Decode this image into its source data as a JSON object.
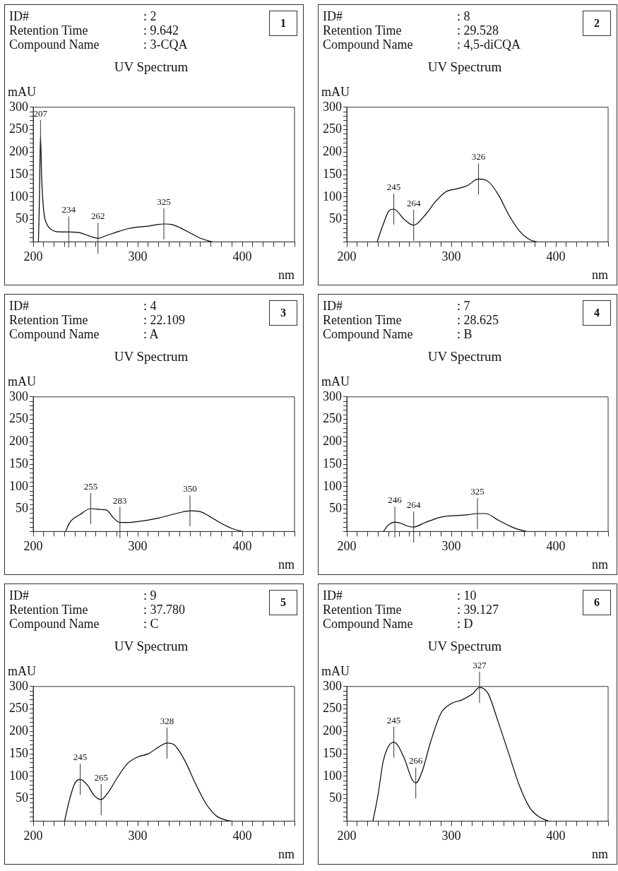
{
  "chart_data": [
    {
      "type": "line",
      "title": "UV Spectrum",
      "ylabel": "mAU",
      "xlabel": "nm",
      "marker": "none",
      "xlim": [
        200,
        450
      ],
      "ylim": [
        0,
        300
      ],
      "xticks": [
        200,
        {
          "value": 210,
          "label": null
        },
        {
          "value": 220,
          "label": null
        },
        {
          "value": 230,
          "label": null
        },
        {
          "value": 240,
          "label": null
        },
        {
          "value": 250,
          "label": null
        },
        {
          "value": 260,
          "label": null
        },
        {
          "value": 270,
          "label": null
        },
        {
          "value": 280,
          "label": null
        },
        {
          "value": 290,
          "label": null
        },
        300,
        {
          "value": 310,
          "label": null
        },
        {
          "value": 320,
          "label": null
        },
        {
          "value": 330,
          "label": null
        },
        {
          "value": 340,
          "label": null
        },
        {
          "value": 350,
          "label": null
        },
        {
          "value": 360,
          "label": null
        },
        {
          "value": 370,
          "label": null
        },
        {
          "value": 380,
          "label": null
        },
        {
          "value": 390,
          "label": null
        },
        400,
        {
          "value": 410,
          "label": null
        },
        {
          "value": 420,
          "label": null
        },
        {
          "value": 430,
          "label": null
        },
        {
          "value": 440,
          "label": null
        },
        {
          "value": 450,
          "label": null
        }
      ],
      "yticks": [
        {
          "value": 0,
          "label": null
        },
        {
          "value": 10,
          "label": null
        },
        {
          "value": 20,
          "label": null
        },
        {
          "value": 30,
          "label": null
        },
        {
          "value": 40,
          "label": null
        },
        50,
        {
          "value": 60,
          "label": null
        },
        {
          "value": 70,
          "label": null
        },
        {
          "value": 80,
          "label": null
        },
        {
          "value": 90,
          "label": null
        },
        100,
        {
          "value": 110,
          "label": null
        },
        {
          "value": 120,
          "label": null
        },
        {
          "value": 130,
          "label": null
        },
        {
          "value": 140,
          "label": null
        },
        150,
        {
          "value": 160,
          "label": null
        },
        {
          "value": 170,
          "label": null
        },
        {
          "value": 180,
          "label": null
        },
        {
          "value": 190,
          "label": null
        },
        200,
        {
          "value": 210,
          "label": null
        },
        {
          "value": 220,
          "label": null
        },
        {
          "value": 230,
          "label": null
        },
        {
          "value": 240,
          "label": null
        },
        250,
        {
          "value": 260,
          "label": null
        },
        {
          "value": 270,
          "label": null
        },
        {
          "value": 280,
          "label": null
        },
        {
          "value": 290,
          "label": null
        },
        300
      ],
      "x": [
        205,
        206,
        207,
        208,
        210,
        213,
        217,
        222,
        234,
        245,
        255,
        262,
        270,
        280,
        290,
        300,
        310,
        320,
        325,
        332,
        340,
        350,
        360,
        368,
        372
      ],
      "series": [
        {
          "color": "#000000",
          "values": [
            0,
            100,
            237,
            150,
            70,
            40,
            28,
            23,
            22,
            20,
            12,
            8,
            14,
            22,
            29,
            33,
            35,
            39,
            40,
            39,
            32,
            20,
            8,
            2,
            0
          ]
        }
      ],
      "annotations": [
        "ID#",
        ": 2",
        "Retention Time",
        ": 9.642",
        "Compound Name",
        ": 3-CQA",
        "1",
        {
          "text": "207",
          "x": 207,
          "y": 237
        },
        {
          "text": "234",
          "x": 234,
          "y": 22
        },
        {
          "text": "262",
          "x": 262,
          "y": 8
        },
        {
          "text": "325",
          "x": 325,
          "y": 40
        }
      ]
    },
    {
      "type": "line",
      "title": "UV Spectrum",
      "ylabel": "mAU",
      "xlabel": "nm",
      "marker": "none",
      "xlim": [
        200,
        450
      ],
      "ylim": [
        0,
        300
      ],
      "xticks": [
        200,
        {
          "value": 210,
          "label": null
        },
        {
          "value": 220,
          "label": null
        },
        {
          "value": 230,
          "label": null
        },
        {
          "value": 240,
          "label": null
        },
        {
          "value": 250,
          "label": null
        },
        {
          "value": 260,
          "label": null
        },
        {
          "value": 270,
          "label": null
        },
        {
          "value": 280,
          "label": null
        },
        {
          "value": 290,
          "label": null
        },
        300,
        {
          "value": 310,
          "label": null
        },
        {
          "value": 320,
          "label": null
        },
        {
          "value": 330,
          "label": null
        },
        {
          "value": 340,
          "label": null
        },
        {
          "value": 350,
          "label": null
        },
        {
          "value": 360,
          "label": null
        },
        {
          "value": 370,
          "label": null
        },
        {
          "value": 380,
          "label": null
        },
        {
          "value": 390,
          "label": null
        },
        400,
        {
          "value": 410,
          "label": null
        },
        {
          "value": 420,
          "label": null
        },
        {
          "value": 430,
          "label": null
        },
        {
          "value": 440,
          "label": null
        },
        {
          "value": 450,
          "label": null
        }
      ],
      "yticks": [
        {
          "value": 0,
          "label": null
        },
        {
          "value": 10,
          "label": null
        },
        {
          "value": 20,
          "label": null
        },
        {
          "value": 30,
          "label": null
        },
        {
          "value": 40,
          "label": null
        },
        50,
        {
          "value": 60,
          "label": null
        },
        {
          "value": 70,
          "label": null
        },
        {
          "value": 80,
          "label": null
        },
        {
          "value": 90,
          "label": null
        },
        100,
        {
          "value": 110,
          "label": null
        },
        {
          "value": 120,
          "label": null
        },
        {
          "value": 130,
          "label": null
        },
        {
          "value": 140,
          "label": null
        },
        150,
        {
          "value": 160,
          "label": null
        },
        {
          "value": 170,
          "label": null
        },
        {
          "value": 180,
          "label": null
        },
        {
          "value": 190,
          "label": null
        },
        200,
        {
          "value": 210,
          "label": null
        },
        {
          "value": 220,
          "label": null
        },
        {
          "value": 230,
          "label": null
        },
        {
          "value": 240,
          "label": null
        },
        250,
        {
          "value": 260,
          "label": null
        },
        {
          "value": 270,
          "label": null
        },
        {
          "value": 280,
          "label": null
        },
        {
          "value": 290,
          "label": null
        },
        300
      ],
      "x": [
        229,
        235,
        240,
        245,
        255,
        264,
        275,
        285,
        295,
        305,
        315,
        326,
        335,
        345,
        355,
        365,
        375,
        382
      ],
      "series": [
        {
          "color": "#000000",
          "values": [
            0,
            40,
            68,
            73,
            50,
            37,
            60,
            90,
            112,
            118,
            125,
            140,
            135,
            105,
            60,
            25,
            5,
            0
          ]
        }
      ],
      "annotations": [
        "ID#",
        ": 8",
        "Retention Time",
        ": 29.528",
        "Compound Name",
        ": 4,5-diCQA",
        "2",
        {
          "text": "245",
          "x": 245,
          "y": 73
        },
        {
          "text": "264",
          "x": 264,
          "y": 37
        },
        {
          "text": "326",
          "x": 326,
          "y": 140
        }
      ]
    },
    {
      "type": "line",
      "title": "UV Spectrum",
      "ylabel": "mAU",
      "xlabel": "nm",
      "marker": "none",
      "xlim": [
        200,
        450
      ],
      "ylim": [
        0,
        300
      ],
      "xticks": [
        200,
        {
          "value": 210,
          "label": null
        },
        {
          "value": 220,
          "label": null
        },
        {
          "value": 230,
          "label": null
        },
        {
          "value": 240,
          "label": null
        },
        {
          "value": 250,
          "label": null
        },
        {
          "value": 260,
          "label": null
        },
        {
          "value": 270,
          "label": null
        },
        {
          "value": 280,
          "label": null
        },
        {
          "value": 290,
          "label": null
        },
        300,
        {
          "value": 310,
          "label": null
        },
        {
          "value": 320,
          "label": null
        },
        {
          "value": 330,
          "label": null
        },
        {
          "value": 340,
          "label": null
        },
        {
          "value": 350,
          "label": null
        },
        {
          "value": 360,
          "label": null
        },
        {
          "value": 370,
          "label": null
        },
        {
          "value": 380,
          "label": null
        },
        {
          "value": 390,
          "label": null
        },
        400,
        {
          "value": 410,
          "label": null
        },
        {
          "value": 420,
          "label": null
        },
        {
          "value": 430,
          "label": null
        },
        {
          "value": 440,
          "label": null
        },
        {
          "value": 450,
          "label": null
        }
      ],
      "yticks": [
        {
          "value": 0,
          "label": null
        },
        {
          "value": 10,
          "label": null
        },
        {
          "value": 20,
          "label": null
        },
        {
          "value": 30,
          "label": null
        },
        {
          "value": 40,
          "label": null
        },
        50,
        {
          "value": 60,
          "label": null
        },
        {
          "value": 70,
          "label": null
        },
        {
          "value": 80,
          "label": null
        },
        {
          "value": 90,
          "label": null
        },
        100,
        {
          "value": 110,
          "label": null
        },
        {
          "value": 120,
          "label": null
        },
        {
          "value": 130,
          "label": null
        },
        {
          "value": 140,
          "label": null
        },
        150,
        {
          "value": 160,
          "label": null
        },
        {
          "value": 170,
          "label": null
        },
        {
          "value": 180,
          "label": null
        },
        {
          "value": 190,
          "label": null
        },
        200,
        {
          "value": 210,
          "label": null
        },
        {
          "value": 220,
          "label": null
        },
        {
          "value": 230,
          "label": null
        },
        {
          "value": 240,
          "label": null
        },
        250,
        {
          "value": 260,
          "label": null
        },
        {
          "value": 270,
          "label": null
        },
        {
          "value": 280,
          "label": null
        },
        {
          "value": 290,
          "label": null
        },
        300
      ],
      "x": [
        231,
        235,
        245,
        255,
        265,
        270,
        277,
        283,
        290,
        300,
        320,
        340,
        350,
        360,
        370,
        380,
        390,
        400
      ],
      "series": [
        {
          "color": "#000000",
          "values": [
            0,
            20,
            38,
            51,
            49,
            48,
            30,
            20,
            20,
            22,
            30,
            42,
            46,
            44,
            32,
            18,
            7,
            0
          ]
        }
      ],
      "annotations": [
        "ID#",
        ": 4",
        "Retention Time",
        ": 22.109",
        "Compound Name",
        ": A",
        "3",
        {
          "text": "255",
          "x": 255,
          "y": 51
        },
        {
          "text": "283",
          "x": 283,
          "y": 20
        },
        {
          "text": "350",
          "x": 350,
          "y": 46
        }
      ]
    },
    {
      "type": "line",
      "title": "UV Spectrum",
      "ylabel": "mAU",
      "xlabel": "nm",
      "marker": "none",
      "xlim": [
        200,
        450
      ],
      "ylim": [
        0,
        300
      ],
      "xticks": [
        200,
        {
          "value": 210,
          "label": null
        },
        {
          "value": 220,
          "label": null
        },
        {
          "value": 230,
          "label": null
        },
        {
          "value": 240,
          "label": null
        },
        {
          "value": 250,
          "label": null
        },
        {
          "value": 260,
          "label": null
        },
        {
          "value": 270,
          "label": null
        },
        {
          "value": 280,
          "label": null
        },
        {
          "value": 290,
          "label": null
        },
        300,
        {
          "value": 310,
          "label": null
        },
        {
          "value": 320,
          "label": null
        },
        {
          "value": 330,
          "label": null
        },
        {
          "value": 340,
          "label": null
        },
        {
          "value": 350,
          "label": null
        },
        {
          "value": 360,
          "label": null
        },
        {
          "value": 370,
          "label": null
        },
        {
          "value": 380,
          "label": null
        },
        {
          "value": 390,
          "label": null
        },
        400,
        {
          "value": 410,
          "label": null
        },
        {
          "value": 420,
          "label": null
        },
        {
          "value": 430,
          "label": null
        },
        {
          "value": 440,
          "label": null
        },
        {
          "value": 450,
          "label": null
        }
      ],
      "yticks": [
        {
          "value": 0,
          "label": null
        },
        {
          "value": 10,
          "label": null
        },
        {
          "value": 20,
          "label": null
        },
        {
          "value": 30,
          "label": null
        },
        {
          "value": 40,
          "label": null
        },
        50,
        {
          "value": 60,
          "label": null
        },
        {
          "value": 70,
          "label": null
        },
        {
          "value": 80,
          "label": null
        },
        {
          "value": 90,
          "label": null
        },
        100,
        {
          "value": 110,
          "label": null
        },
        {
          "value": 120,
          "label": null
        },
        {
          "value": 130,
          "label": null
        },
        {
          "value": 140,
          "label": null
        },
        150,
        {
          "value": 160,
          "label": null
        },
        {
          "value": 170,
          "label": null
        },
        {
          "value": 180,
          "label": null
        },
        {
          "value": 190,
          "label": null
        },
        200,
        {
          "value": 210,
          "label": null
        },
        {
          "value": 220,
          "label": null
        },
        {
          "value": 230,
          "label": null
        },
        {
          "value": 240,
          "label": null
        },
        250,
        {
          "value": 260,
          "label": null
        },
        {
          "value": 270,
          "label": null
        },
        {
          "value": 280,
          "label": null
        },
        {
          "value": 290,
          "label": null
        },
        300
      ],
      "x": [
        235,
        240,
        246,
        252,
        258,
        264,
        275,
        290,
        300,
        315,
        325,
        333,
        345,
        360,
        372
      ],
      "series": [
        {
          "color": "#000000",
          "values": [
            0,
            15,
            21,
            18,
            12,
            10,
            20,
            32,
            35,
            37,
            40,
            40,
            25,
            8,
            0
          ]
        }
      ],
      "annotations": [
        "ID#",
        ": 7",
        "Retention Time",
        ": 28.625",
        "Compound Name",
        ": B",
        "4",
        {
          "text": "246",
          "x": 246,
          "y": 21
        },
        {
          "text": "264",
          "x": 264,
          "y": 10
        },
        {
          "text": "325",
          "x": 325,
          "y": 40
        }
      ]
    },
    {
      "type": "line",
      "title": "UV Spectrum",
      "ylabel": "mAU",
      "xlabel": "nm",
      "marker": "none",
      "xlim": [
        200,
        450
      ],
      "ylim": [
        0,
        300
      ],
      "xticks": [
        200,
        {
          "value": 210,
          "label": null
        },
        {
          "value": 220,
          "label": null
        },
        {
          "value": 230,
          "label": null
        },
        {
          "value": 240,
          "label": null
        },
        {
          "value": 250,
          "label": null
        },
        {
          "value": 260,
          "label": null
        },
        {
          "value": 270,
          "label": null
        },
        {
          "value": 280,
          "label": null
        },
        {
          "value": 290,
          "label": null
        },
        300,
        {
          "value": 310,
          "label": null
        },
        {
          "value": 320,
          "label": null
        },
        {
          "value": 330,
          "label": null
        },
        {
          "value": 340,
          "label": null
        },
        {
          "value": 350,
          "label": null
        },
        {
          "value": 360,
          "label": null
        },
        {
          "value": 370,
          "label": null
        },
        {
          "value": 380,
          "label": null
        },
        {
          "value": 390,
          "label": null
        },
        400,
        {
          "value": 410,
          "label": null
        },
        {
          "value": 420,
          "label": null
        },
        {
          "value": 430,
          "label": null
        },
        {
          "value": 440,
          "label": null
        },
        {
          "value": 450,
          "label": null
        }
      ],
      "yticks": [
        {
          "value": 0,
          "label": null
        },
        {
          "value": 10,
          "label": null
        },
        {
          "value": 20,
          "label": null
        },
        {
          "value": 30,
          "label": null
        },
        {
          "value": 40,
          "label": null
        },
        50,
        {
          "value": 60,
          "label": null
        },
        {
          "value": 70,
          "label": null
        },
        {
          "value": 80,
          "label": null
        },
        {
          "value": 90,
          "label": null
        },
        100,
        {
          "value": 110,
          "label": null
        },
        {
          "value": 120,
          "label": null
        },
        {
          "value": 130,
          "label": null
        },
        {
          "value": 140,
          "label": null
        },
        150,
        {
          "value": 160,
          "label": null
        },
        {
          "value": 170,
          "label": null
        },
        {
          "value": 180,
          "label": null
        },
        {
          "value": 190,
          "label": null
        },
        200,
        {
          "value": 210,
          "label": null
        },
        {
          "value": 220,
          "label": null
        },
        {
          "value": 230,
          "label": null
        },
        {
          "value": 240,
          "label": null
        },
        250,
        {
          "value": 260,
          "label": null
        },
        {
          "value": 270,
          "label": null
        },
        {
          "value": 280,
          "label": null
        },
        {
          "value": 290,
          "label": null
        },
        300
      ],
      "x": [
        230,
        235,
        240,
        245,
        252,
        258,
        265,
        272,
        280,
        290,
        300,
        310,
        320,
        328,
        335,
        345,
        355,
        365,
        375,
        385,
        390
      ],
      "series": [
        {
          "color": "#000000",
          "values": [
            0,
            50,
            85,
            93,
            80,
            58,
            48,
            65,
            95,
            128,
            143,
            150,
            165,
            174,
            170,
            135,
            85,
            40,
            12,
            2,
            0
          ]
        }
      ],
      "annotations": [
        "ID#",
        ": 9",
        "Retention Time",
        ": 37.780",
        "Compound Name",
        ": C",
        "5",
        {
          "text": "245",
          "x": 245,
          "y": 93
        },
        {
          "text": "265",
          "x": 265,
          "y": 48
        },
        {
          "text": "328",
          "x": 328,
          "y": 174
        }
      ]
    },
    {
      "type": "line",
      "title": "UV Spectrum",
      "ylabel": "mAU",
      "xlabel": "nm",
      "marker": "none",
      "xlim": [
        200,
        450
      ],
      "ylim": [
        0,
        300
      ],
      "xticks": [
        200,
        {
          "value": 210,
          "label": null
        },
        {
          "value": 220,
          "label": null
        },
        {
          "value": 230,
          "label": null
        },
        {
          "value": 240,
          "label": null
        },
        {
          "value": 250,
          "label": null
        },
        {
          "value": 260,
          "label": null
        },
        {
          "value": 270,
          "label": null
        },
        {
          "value": 280,
          "label": null
        },
        {
          "value": 290,
          "label": null
        },
        300,
        {
          "value": 310,
          "label": null
        },
        {
          "value": 320,
          "label": null
        },
        {
          "value": 330,
          "label": null
        },
        {
          "value": 340,
          "label": null
        },
        {
          "value": 350,
          "label": null
        },
        {
          "value": 360,
          "label": null
        },
        {
          "value": 370,
          "label": null
        },
        {
          "value": 380,
          "label": null
        },
        {
          "value": 390,
          "label": null
        },
        400,
        {
          "value": 410,
          "label": null
        },
        {
          "value": 420,
          "label": null
        },
        {
          "value": 430,
          "label": null
        },
        {
          "value": 440,
          "label": null
        },
        {
          "value": 450,
          "label": null
        }
      ],
      "yticks": [
        {
          "value": 0,
          "label": null
        },
        {
          "value": 10,
          "label": null
        },
        {
          "value": 20,
          "label": null
        },
        {
          "value": 30,
          "label": null
        },
        {
          "value": 40,
          "label": null
        },
        50,
        {
          "value": 60,
          "label": null
        },
        {
          "value": 70,
          "label": null
        },
        {
          "value": 80,
          "label": null
        },
        {
          "value": 90,
          "label": null
        },
        100,
        {
          "value": 110,
          "label": null
        },
        {
          "value": 120,
          "label": null
        },
        {
          "value": 130,
          "label": null
        },
        {
          "value": 140,
          "label": null
        },
        150,
        {
          "value": 160,
          "label": null
        },
        {
          "value": 170,
          "label": null
        },
        {
          "value": 180,
          "label": null
        },
        {
          "value": 190,
          "label": null
        },
        200,
        {
          "value": 210,
          "label": null
        },
        {
          "value": 220,
          "label": null
        },
        {
          "value": 230,
          "label": null
        },
        {
          "value": 240,
          "label": null
        },
        250,
        {
          "value": 260,
          "label": null
        },
        {
          "value": 270,
          "label": null
        },
        {
          "value": 280,
          "label": null
        },
        {
          "value": 290,
          "label": null
        },
        300
      ],
      "x": [
        225,
        230,
        235,
        245,
        255,
        262,
        266,
        272,
        280,
        290,
        300,
        310,
        320,
        327,
        335,
        345,
        355,
        365,
        375,
        385,
        393
      ],
      "series": [
        {
          "color": "#000000",
          "values": [
            0,
            60,
            135,
            176,
            140,
            95,
            85,
            110,
            175,
            240,
            262,
            270,
            283,
            298,
            285,
            220,
            150,
            80,
            30,
            8,
            0
          ]
        }
      ],
      "annotations": [
        "ID#",
        ": 10",
        "Retention Time",
        ": 39.127",
        "Compound Name",
        ": D",
        "6",
        {
          "text": "245",
          "x": 245,
          "y": 176
        },
        {
          "text": "266",
          "x": 266,
          "y": 85
        },
        {
          "text": "327",
          "x": 327,
          "y": 298
        }
      ]
    }
  ]
}
